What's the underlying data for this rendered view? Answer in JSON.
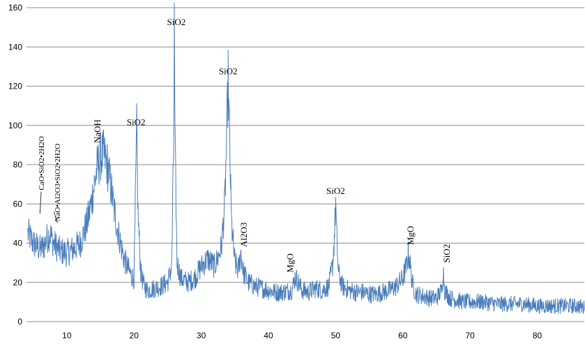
{
  "chart_data": {
    "type": "line",
    "title": "",
    "xlabel": "",
    "ylabel": "",
    "xlim": [
      4,
      87
    ],
    "ylim": [
      0,
      160
    ],
    "grid": "horizontal",
    "legend": "none",
    "series_color": "#4a7ebb",
    "x_ticks": [
      10,
      20,
      30,
      40,
      50,
      60,
      70,
      80
    ],
    "y_ticks": [
      0,
      20,
      40,
      60,
      80,
      100,
      120,
      140,
      160
    ],
    "series": [
      {
        "x": [
          4.2,
          5.0,
          6.0,
          6.5,
          7.0,
          7.5,
          8.0,
          9.0,
          10.0,
          11.0,
          12.0,
          13.0,
          13.5,
          14.0,
          14.5,
          15.0,
          15.5,
          16.0,
          16.5,
          17.0,
          17.5,
          18.0,
          18.5,
          19.0,
          19.5,
          20.0,
          20.2,
          20.4,
          20.6,
          21.0,
          21.5,
          22.0,
          23.0,
          24.0,
          25.0,
          25.6,
          25.9,
          26.0,
          26.1,
          26.4,
          27.0,
          28.0,
          29.0,
          30.0,
          31.0,
          32.0,
          33.0,
          33.5,
          33.8,
          34.0,
          34.2,
          34.5,
          35.0,
          35.5,
          35.9,
          36.3,
          37.0,
          38.0,
          39.0,
          40.0,
          41.0,
          42.0,
          43.5,
          44.0,
          45.0,
          46.0,
          47.0,
          48.0,
          49.0,
          49.6,
          49.9,
          50.0,
          50.1,
          50.4,
          51.0,
          52.0,
          53.0,
          54.0,
          55.0,
          56.0,
          57.0,
          58.0,
          59.0,
          60.0,
          60.5,
          60.8,
          61.0,
          61.2,
          61.5,
          62.0,
          63.0,
          64.0,
          65.0,
          65.8,
          66.0,
          66.2,
          67.0,
          68.0,
          69.0,
          70.0,
          72.0,
          74.0,
          76.0,
          78.0,
          80.0,
          82.0,
          84.0,
          86.0,
          87.0
        ],
        "values": [
          45,
          40,
          37,
          38,
          42,
          45,
          40,
          36,
          35,
          37,
          40,
          50,
          58,
          68,
          78,
          84,
          85,
          80,
          70,
          58,
          48,
          40,
          32,
          28,
          24,
          22,
          60,
          97,
          55,
          25,
          18,
          16,
          17,
          18,
          20,
          28,
          90,
          149,
          90,
          30,
          22,
          20,
          22,
          28,
          32,
          28,
          38,
          60,
          95,
          122,
          95,
          50,
          30,
          26,
          35,
          25,
          20,
          18,
          17,
          16,
          15,
          15,
          16,
          23,
          16,
          15,
          17,
          16,
          18,
          30,
          50,
          62,
          48,
          25,
          18,
          16,
          15,
          15,
          14,
          14,
          15,
          16,
          18,
          22,
          28,
          34,
          32,
          25,
          18,
          14,
          13,
          12,
          12,
          16,
          27,
          16,
          12,
          11,
          10,
          10,
          10,
          9,
          9,
          9,
          8,
          8,
          8,
          8,
          7
        ]
      }
    ],
    "annotations": [
      {
        "text": "CaO•SiO2•2H2O",
        "x": 6.6,
        "y": 67,
        "rotate": true,
        "lead_to": [
          6.0,
          55
        ]
      },
      {
        "text": "NaO•Al2O3•SiO2•2H2O",
        "x": 9.0,
        "y": 51,
        "rotate": true,
        "lead_to": [
          8.1,
          56
        ]
      },
      {
        "text": "NaOH",
        "x": 15.0,
        "y": 91,
        "rotate": true
      },
      {
        "text": "SiO2",
        "x": 20.3,
        "y": 98,
        "rotate": false
      },
      {
        "text": "SiO2",
        "x": 26.3,
        "y": 149,
        "rotate": false
      },
      {
        "text": "SiO2",
        "x": 34.0,
        "y": 124,
        "rotate": false
      },
      {
        "text": "Al2O3",
        "x": 36.8,
        "y": 38,
        "rotate": true
      },
      {
        "text": "MgO",
        "x": 43.7,
        "y": 25,
        "rotate": true
      },
      {
        "text": "SiO2",
        "x": 50.0,
        "y": 63,
        "rotate": false
      },
      {
        "text": "MgO",
        "x": 61.6,
        "y": 39,
        "rotate": true
      },
      {
        "text": "SiO2",
        "x": 67.0,
        "y": 30,
        "rotate": true
      }
    ]
  }
}
